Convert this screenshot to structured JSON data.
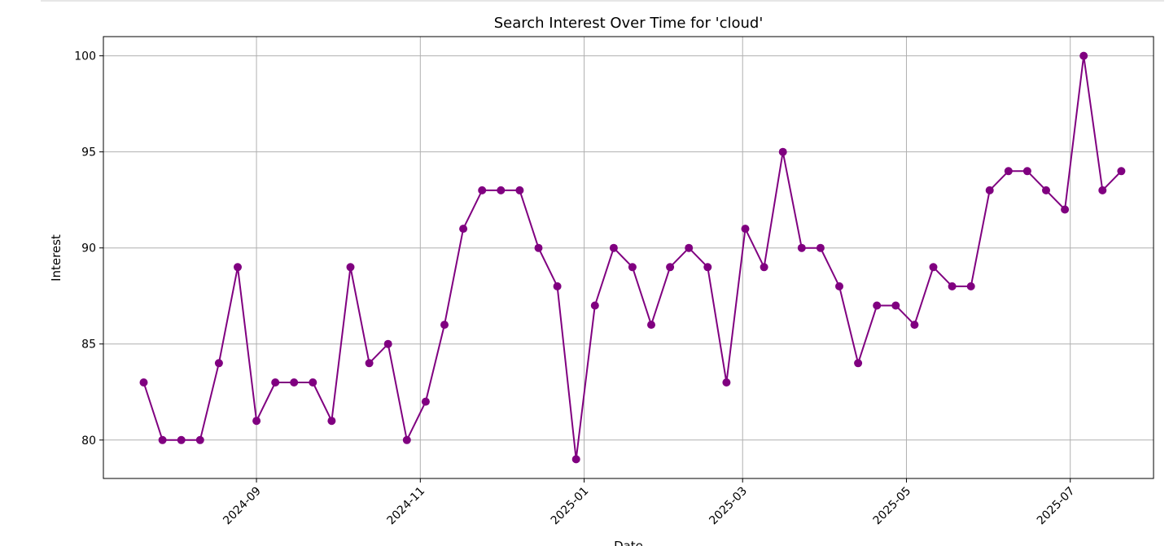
{
  "chart_data": {
    "type": "line",
    "title": "Search Interest Over Time for 'cloud'",
    "xlabel": "Date",
    "ylabel": "Interest",
    "ylim": [
      78,
      101
    ],
    "yticks": [
      80,
      85,
      90,
      95,
      100
    ],
    "xlim": [
      "2024-07-06",
      "2025-08-01"
    ],
    "xticks": [
      {
        "date": "2024-09-01",
        "label": "2024-09"
      },
      {
        "date": "2024-11-01",
        "label": "2024-11"
      },
      {
        "date": "2025-01-01",
        "label": "2025-01"
      },
      {
        "date": "2025-03-01",
        "label": "2025-03"
      },
      {
        "date": "2025-05-01",
        "label": "2025-05"
      },
      {
        "date": "2025-07-01",
        "label": "2025-07"
      }
    ],
    "grid": true,
    "series": [
      {
        "color": "#800080",
        "marker": "circle",
        "x": [
          "2024-07-21",
          "2024-07-28",
          "2024-08-04",
          "2024-08-11",
          "2024-08-18",
          "2024-08-25",
          "2024-09-01",
          "2024-09-08",
          "2024-09-15",
          "2024-09-22",
          "2024-09-29",
          "2024-10-06",
          "2024-10-13",
          "2024-10-20",
          "2024-10-27",
          "2024-11-03",
          "2024-11-10",
          "2024-11-17",
          "2024-11-24",
          "2024-12-01",
          "2024-12-08",
          "2024-12-15",
          "2024-12-22",
          "2024-12-29",
          "2025-01-05",
          "2025-01-12",
          "2025-01-19",
          "2025-01-26",
          "2025-02-02",
          "2025-02-09",
          "2025-02-16",
          "2025-02-23",
          "2025-03-02",
          "2025-03-09",
          "2025-03-16",
          "2025-03-23",
          "2025-03-30",
          "2025-04-06",
          "2025-04-13",
          "2025-04-20",
          "2025-04-27",
          "2025-05-04",
          "2025-05-11",
          "2025-05-18",
          "2025-05-25",
          "2025-06-01",
          "2025-06-08",
          "2025-06-15",
          "2025-06-22",
          "2025-06-29",
          "2025-07-06",
          "2025-07-13",
          "2025-07-20"
        ],
        "values": [
          83,
          80,
          80,
          80,
          84,
          89,
          81,
          83,
          83,
          83,
          81,
          89,
          84,
          85,
          80,
          82,
          86,
          91,
          93,
          93,
          93,
          90,
          88,
          79,
          87,
          90,
          89,
          86,
          89,
          90,
          89,
          83,
          91,
          89,
          95,
          90,
          90,
          88,
          84,
          87,
          87,
          86,
          89,
          88,
          88,
          93,
          94,
          94,
          93,
          92,
          100,
          93,
          94
        ]
      }
    ]
  }
}
